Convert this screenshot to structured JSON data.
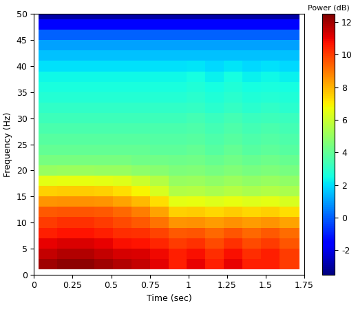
{
  "chart_data": {
    "type": "heatmap",
    "x_label": "Time (sec)",
    "y_label": "Frequency (Hz)",
    "xlim": [
      0,
      1.75
    ],
    "xticks": [
      0,
      0.25,
      0.5,
      0.75,
      1,
      1.25,
      1.5,
      1.75
    ],
    "ylim": [
      0,
      50
    ],
    "yticks": [
      0,
      5,
      10,
      15,
      20,
      25,
      30,
      35,
      40,
      45,
      50
    ],
    "x_edges": [
      0.03,
      0.15,
      0.27,
      0.39,
      0.51,
      0.63,
      0.75,
      0.87,
      0.99,
      1.11,
      1.23,
      1.35,
      1.47,
      1.59,
      1.72
    ],
    "y_edges": [
      1,
      3,
      5,
      7,
      9,
      11,
      13,
      15,
      17,
      19,
      21,
      23,
      25,
      27,
      29,
      31,
      33,
      35,
      37,
      39,
      41,
      43,
      45,
      47,
      49,
      50
    ],
    "cells": [
      [
        12.0,
        12.3,
        12.3,
        12.0,
        11.8,
        11.55,
        11.1,
        10.5,
        11.0,
        10.5,
        11.0,
        10.5,
        10.5,
        10.0
      ],
      [
        11.5,
        11.8,
        11.8,
        11.5,
        11.3,
        11.2,
        10.9,
        10.5,
        10.8,
        10.3,
        10.8,
        10.3,
        10.5,
        10.0
      ],
      [
        11.0,
        11.2,
        11.2,
        11.0,
        10.8,
        10.7,
        10.4,
        10.0,
        10.2,
        9.8,
        10.2,
        9.8,
        10.0,
        9.6
      ],
      [
        10.5,
        10.7,
        10.7,
        10.5,
        10.3,
        10.2,
        9.9,
        9.5,
        9.6,
        9.3,
        9.6,
        9.3,
        9.5,
        9.2
      ],
      [
        10.0,
        10.2,
        10.2,
        10.0,
        9.8,
        9.55,
        9.1,
        8.5,
        8.6,
        8.4,
        8.6,
        8.4,
        8.5,
        8.3
      ],
      [
        9.5,
        9.6,
        9.6,
        9.5,
        9.3,
        8.9,
        8.3,
        7.5,
        7.6,
        7.4,
        7.6,
        7.4,
        7.5,
        7.3
      ],
      [
        8.5,
        8.6,
        8.6,
        8.5,
        8.3,
        7.9,
        7.3,
        6.5,
        6.6,
        6.4,
        6.6,
        6.4,
        6.5,
        6.3
      ],
      [
        7.5,
        7.6,
        7.6,
        7.5,
        7.3,
        6.9,
        6.3,
        5.5,
        5.6,
        5.4,
        5.6,
        5.4,
        5.5,
        5.4
      ],
      [
        6.5,
        6.6,
        6.6,
        6.5,
        6.4,
        6.05,
        5.6,
        5.0,
        5.1,
        4.9,
        5.1,
        4.9,
        5.0,
        4.9
      ],
      [
        5.0,
        5.1,
        5.1,
        5.0,
        5.0,
        4.85,
        4.7,
        4.5,
        4.6,
        4.4,
        4.6,
        4.4,
        4.5,
        4.4
      ],
      [
        4.4,
        4.4,
        4.4,
        4.4,
        4.4,
        4.3,
        4.3,
        4.2,
        4.3,
        4.1,
        4.3,
        4.1,
        4.2,
        4.1
      ],
      [
        4.0,
        4.0,
        4.0,
        4.0,
        4.0,
        4.0,
        3.9,
        3.9,
        4.0,
        3.8,
        4.0,
        3.8,
        3.9,
        3.8
      ],
      [
        3.8,
        3.8,
        3.8,
        3.8,
        3.8,
        3.8,
        3.7,
        3.7,
        3.8,
        3.6,
        3.8,
        3.6,
        3.7,
        3.6
      ],
      [
        3.5,
        3.5,
        3.5,
        3.5,
        3.5,
        3.5,
        3.5,
        3.5,
        3.6,
        3.4,
        3.6,
        3.4,
        3.5,
        3.4
      ],
      [
        3.3,
        3.3,
        3.3,
        3.3,
        3.3,
        3.3,
        3.3,
        3.3,
        3.4,
        3.2,
        3.4,
        3.2,
        3.3,
        3.2
      ],
      [
        3.0,
        3.0,
        3.0,
        3.0,
        3.0,
        3.0,
        3.0,
        3.0,
        3.1,
        2.9,
        3.1,
        2.9,
        3.0,
        2.9
      ],
      [
        2.8,
        2.8,
        2.8,
        2.8,
        2.8,
        2.8,
        2.8,
        2.8,
        2.9,
        2.7,
        2.9,
        2.7,
        2.8,
        2.7
      ],
      [
        2.6,
        2.6,
        2.6,
        2.6,
        2.6,
        2.6,
        2.6,
        2.6,
        2.7,
        2.5,
        2.7,
        2.5,
        2.6,
        2.5
      ],
      [
        2.4,
        2.4,
        2.4,
        2.4,
        2.4,
        2.4,
        2.4,
        2.4,
        2.5,
        2.3,
        2.5,
        2.3,
        2.4,
        2.3
      ],
      [
        2.0,
        2.0,
        2.0,
        2.0,
        2.0,
        2.0,
        2.0,
        2.0,
        2.1,
        1.9,
        2.1,
        1.9,
        2.0,
        1.9
      ],
      [
        1.5,
        1.5,
        1.5,
        1.5,
        1.5,
        1.5,
        1.5,
        1.5,
        1.5,
        1.5,
        1.5,
        1.5,
        1.5,
        1.5
      ],
      [
        1.0,
        1.0,
        1.0,
        1.0,
        1.0,
        1.0,
        1.0,
        1.0,
        1.0,
        1.0,
        1.0,
        1.0,
        1.0,
        1.0
      ],
      [
        0.0,
        0.0,
        0.0,
        0.0,
        0.0,
        0.0,
        0.0,
        0.0,
        0.0,
        0.0,
        0.0,
        0.0,
        0.0,
        0.0
      ],
      [
        -1.5,
        -1.5,
        -1.5,
        -1.5,
        -1.5,
        -1.5,
        -1.5,
        -1.5,
        -1.5,
        -1.5,
        -1.5,
        -1.5,
        -1.5,
        -1.5
      ],
      [
        -3.0,
        -3.0,
        -3.0,
        -3.0,
        -3.0,
        -3.0,
        -3.0,
        -3.0,
        -3.0,
        -3.0,
        -3.0,
        -3.0,
        -3.0,
        -3.0
      ]
    ],
    "colorbar_label": "Power (dB)",
    "colorbar_range": [
      -3.5,
      12.5
    ],
    "colorbar_ticks": [
      -2,
      0,
      2,
      4,
      6,
      8,
      10,
      12
    ]
  }
}
